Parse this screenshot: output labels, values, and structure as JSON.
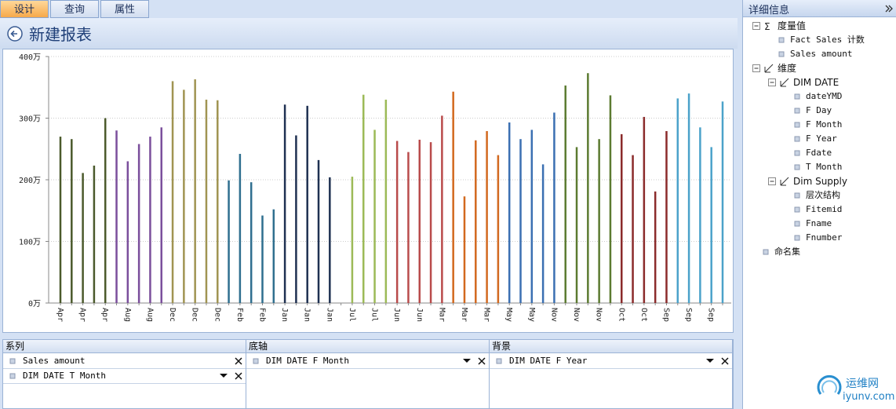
{
  "tabs": [
    "设计",
    "查询",
    "属性"
  ],
  "report_title": "新建报表",
  "chart_data": {
    "type": "bar",
    "categories": [
      "Apr",
      null,
      "Apr",
      null,
      "Apr",
      null,
      "Aug",
      null,
      "Aug",
      null,
      "Dec",
      null,
      "Dec",
      null,
      "Dec",
      null,
      "Feb",
      null,
      "Feb",
      null,
      "Jan",
      null,
      "Jan",
      null,
      "Jan",
      null,
      "Jul",
      null,
      "Jul",
      null,
      "Jun",
      null,
      "Jun",
      null,
      "Mar",
      null,
      "Mar",
      null,
      "Mar",
      null,
      "May",
      null,
      "May",
      null,
      "Nov",
      null,
      "Nov",
      null,
      "Nov",
      null,
      "Oct",
      null,
      "Oct",
      null,
      "Sep",
      null,
      "Sep",
      null,
      "Sep",
      null
    ],
    "values": [
      270,
      266,
      211,
      223,
      300,
      280,
      230,
      258,
      270,
      285,
      360,
      346,
      363,
      330,
      329,
      199,
      242,
      196,
      142,
      152,
      322,
      272,
      320,
      232,
      204,
      0,
      205,
      338,
      281,
      330,
      263,
      245,
      265,
      261,
      304,
      343,
      173,
      264,
      279,
      240,
      293,
      266,
      281,
      225,
      309,
      353,
      253,
      373,
      266,
      337,
      274,
      240,
      302,
      181,
      279,
      332,
      340,
      285,
      253,
      327
    ],
    "colors": [
      "#4b5a2c",
      "#4b5a2c",
      "#4b5a2c",
      "#4b5a2c",
      "#4b5a2c",
      "#7b4f9c",
      "#7b4f9c",
      "#7b4f9c",
      "#7b4f9c",
      "#7b4f9c",
      "#a09452",
      "#a09452",
      "#a09452",
      "#a09452",
      "#a09452",
      "#2f6f8f",
      "#2f6f8f",
      "#2f6f8f",
      "#2f6f8f",
      "#2f6f8f",
      "#1f3152",
      "#1f3152",
      "#1f3152",
      "#1f3152",
      "#1f3152",
      "#9cba57",
      "#9cba57",
      "#9cba57",
      "#9cba57",
      "#9cba57",
      "#b94b4b",
      "#b94b4b",
      "#b94b4b",
      "#b94b4b",
      "#b94b4b",
      "#d2691f",
      "#d2691f",
      "#d2691f",
      "#d2691f",
      "#d2691f",
      "#3b70b2",
      "#3b70b2",
      "#3b70b2",
      "#3b70b2",
      "#3b70b2",
      "#5c7b31",
      "#5c7b31",
      "#5c7b31",
      "#5c7b31",
      "#5c7b31",
      "#8b2b2b",
      "#8b2b2b",
      "#8b2b2b",
      "#8b2b2b",
      "#8b2b2b",
      "#4ba2ca",
      "#4ba2ca",
      "#4ba2ca",
      "#4ba2ca",
      "#4ba2ca"
    ],
    "ylim": [
      0,
      400
    ],
    "yticks": [
      {
        "value": 0,
        "label": "0万"
      },
      {
        "value": 100,
        "label": "100万"
      },
      {
        "value": 200,
        "label": "200万"
      },
      {
        "value": 300,
        "label": "300万"
      },
      {
        "value": 400,
        "label": "400万"
      }
    ],
    "grid": true
  },
  "details": {
    "title": "详细信息",
    "tree": [
      {
        "label": "度量值",
        "children": [
          {
            "label": "Fact Sales 计数"
          },
          {
            "label": "Sales amount"
          }
        ]
      },
      {
        "label": "维度",
        "children": [
          {
            "label": "DIM DATE",
            "children": [
              {
                "label": "dateYMD"
              },
              {
                "label": "F Day"
              },
              {
                "label": "F Month"
              },
              {
                "label": "F Year"
              },
              {
                "label": "Fdate"
              },
              {
                "label": "T Month"
              }
            ]
          },
          {
            "label": "Dim Supply",
            "children": [
              {
                "label": "层次结构"
              },
              {
                "label": "Fitemid"
              },
              {
                "label": "Fname"
              },
              {
                "label": "Fnumber"
              }
            ]
          }
        ]
      },
      {
        "label": "命名集"
      }
    ]
  },
  "fields": [
    {
      "title": "系列",
      "items": [
        "Sales amount",
        "DIM DATE T Month"
      ]
    },
    {
      "title": "底轴",
      "items": [
        "DIM DATE F Month"
      ]
    },
    {
      "title": "背景",
      "items": [
        "DIM DATE F Year"
      ]
    }
  ],
  "watermark": {
    "name": "运维网",
    "url": "iyunv.com"
  }
}
